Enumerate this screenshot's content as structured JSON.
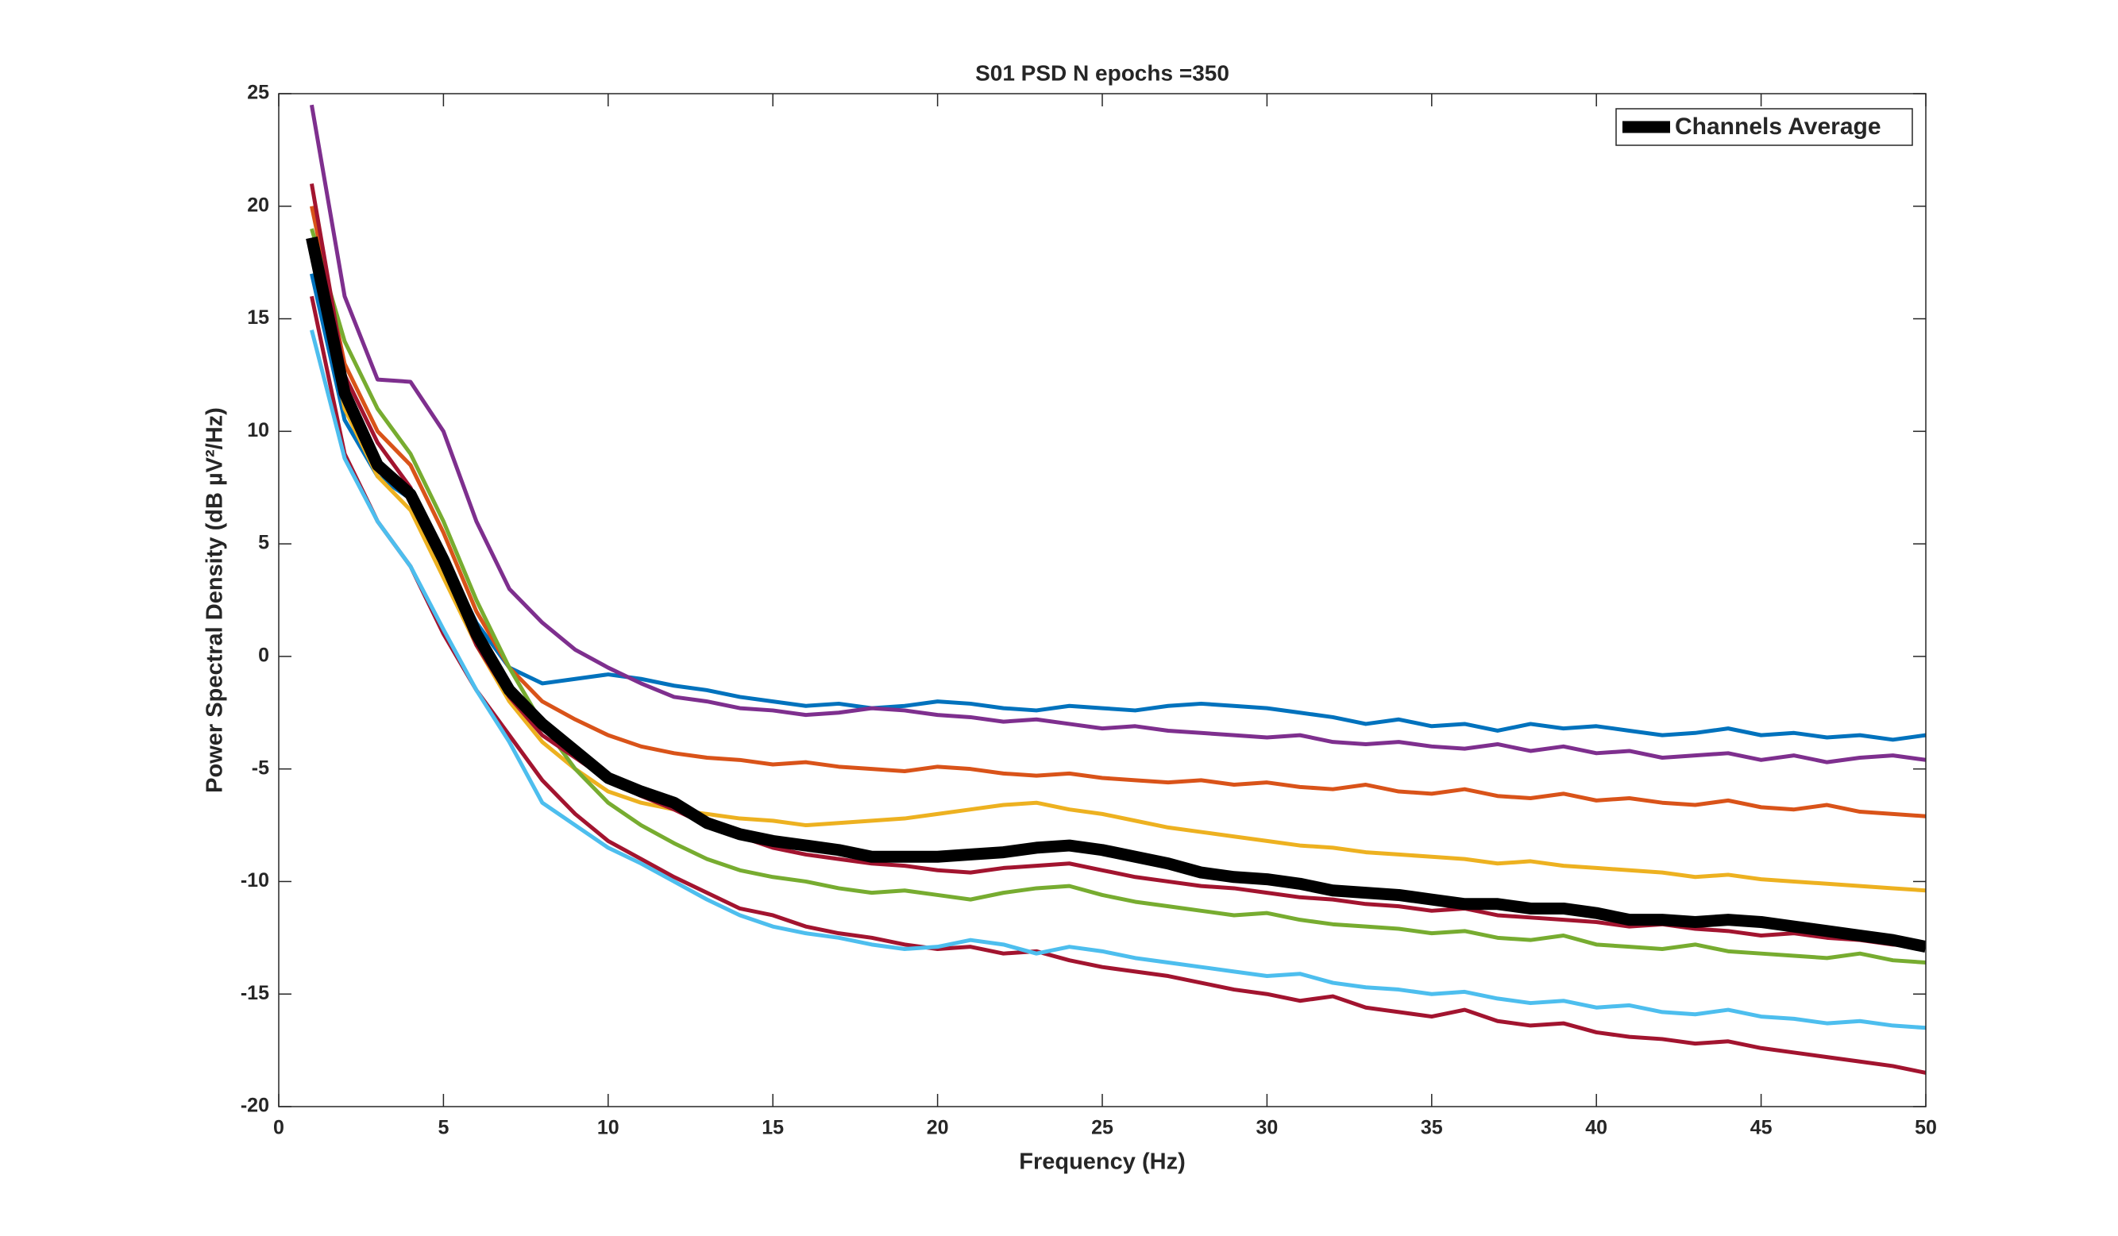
{
  "chart_data": {
    "type": "line",
    "title": "S01 PSD N epochs =350",
    "xlabel": "Frequency (Hz)",
    "ylabel": "Power Spectral Density (dB µV²/Hz)",
    "x": [
      1,
      2,
      3,
      4,
      5,
      6,
      7,
      8,
      9,
      10,
      11,
      12,
      13,
      14,
      15,
      16,
      17,
      18,
      19,
      20,
      21,
      22,
      23,
      24,
      25,
      26,
      27,
      28,
      29,
      30,
      31,
      32,
      33,
      34,
      35,
      36,
      37,
      38,
      39,
      40,
      41,
      42,
      43,
      44,
      45,
      46,
      47,
      48,
      49,
      50
    ],
    "xlim": [
      0,
      50
    ],
    "xticks": [
      0,
      5,
      10,
      15,
      20,
      25,
      30,
      35,
      40,
      45,
      50
    ],
    "ylim": [
      -20,
      25
    ],
    "yticks": [
      -20,
      -15,
      -10,
      -5,
      0,
      5,
      10,
      15,
      20,
      25
    ],
    "legend": "northeast",
    "series": [
      {
        "color": "#0072BD",
        "values": [
          17,
          10.5,
          8,
          7,
          4.5,
          1.5,
          -0.5,
          -1.2,
          -1.0,
          -0.8,
          -1.0,
          -1.3,
          -1.5,
          -1.8,
          -2.0,
          -2.2,
          -2.1,
          -2.3,
          -2.2,
          -2.0,
          -2.1,
          -2.3,
          -2.4,
          -2.2,
          -2.3,
          -2.4,
          -2.2,
          -2.1,
          -2.2,
          -2.3,
          -2.5,
          -2.7,
          -3.0,
          -2.8,
          -3.1,
          -3.0,
          -3.3,
          -3.0,
          -3.2,
          -3.1,
          -3.3,
          -3.5,
          -3.4,
          -3.2,
          -3.5,
          -3.4,
          -3.6,
          -3.5,
          -3.7,
          -3.5
        ]
      },
      {
        "color": "#7E2F8E",
        "values": [
          24.5,
          16,
          12.3,
          12.2,
          10,
          6,
          3,
          1.5,
          0.3,
          -0.5,
          -1.2,
          -1.8,
          -2.0,
          -2.3,
          -2.4,
          -2.6,
          -2.5,
          -2.3,
          -2.4,
          -2.6,
          -2.7,
          -2.9,
          -2.8,
          -3.0,
          -3.2,
          -3.1,
          -3.3,
          -3.4,
          -3.5,
          -3.6,
          -3.5,
          -3.8,
          -3.9,
          -3.8,
          -4.0,
          -4.1,
          -3.9,
          -4.2,
          -4.0,
          -4.3,
          -4.2,
          -4.5,
          -4.4,
          -4.3,
          -4.6,
          -4.4,
          -4.7,
          -4.5,
          -4.4,
          -4.6
        ]
      },
      {
        "color": "#A2142F",
        "values": [
          16,
          9,
          6,
          4,
          1,
          -1.5,
          -3.5,
          -5.5,
          -7,
          -8.2,
          -9,
          -9.8,
          -10.5,
          -11.2,
          -11.5,
          -12,
          -12.3,
          -12.5,
          -12.8,
          -13,
          -12.9,
          -13.2,
          -13.1,
          -13.5,
          -13.8,
          -14,
          -14.2,
          -14.5,
          -14.8,
          -15,
          -15.3,
          -15.1,
          -15.6,
          -15.8,
          -16.0,
          -15.7,
          -16.2,
          -16.4,
          -16.3,
          -16.7,
          -16.9,
          -17.0,
          -17.2,
          -17.1,
          -17.4,
          -17.6,
          -17.8,
          -18.0,
          -18.2,
          -18.5
        ]
      },
      {
        "color": "#4DBEEE",
        "values": [
          14.5,
          8.8,
          6,
          4,
          1.2,
          -1.5,
          -3.8,
          -6.5,
          -7.5,
          -8.5,
          -9.2,
          -10,
          -10.8,
          -11.5,
          -12,
          -12.3,
          -12.5,
          -12.8,
          -13,
          -12.9,
          -12.6,
          -12.8,
          -13.2,
          -12.9,
          -13.1,
          -13.4,
          -13.6,
          -13.8,
          -14,
          -14.2,
          -14.1,
          -14.5,
          -14.7,
          -14.8,
          -15.0,
          -14.9,
          -15.2,
          -15.4,
          -15.3,
          -15.6,
          -15.5,
          -15.8,
          -15.9,
          -15.7,
          -16.0,
          -16.1,
          -16.3,
          -16.2,
          -16.4,
          -16.5
        ]
      },
      {
        "color": "#D95319",
        "values": [
          20,
          13,
          10,
          8.5,
          5.5,
          2,
          -0.5,
          -2.0,
          -2.8,
          -3.5,
          -4.0,
          -4.3,
          -4.5,
          -4.6,
          -4.8,
          -4.7,
          -4.9,
          -5.0,
          -5.1,
          -4.9,
          -5.0,
          -5.2,
          -5.3,
          -5.2,
          -5.4,
          -5.5,
          -5.6,
          -5.5,
          -5.7,
          -5.6,
          -5.8,
          -5.9,
          -5.7,
          -6.0,
          -6.1,
          -5.9,
          -6.2,
          -6.3,
          -6.1,
          -6.4,
          -6.3,
          -6.5,
          -6.6,
          -6.4,
          -6.7,
          -6.8,
          -6.6,
          -6.9,
          -7.0,
          -7.1
        ]
      },
      {
        "color": "#EDB120",
        "values": [
          18,
          11,
          8,
          6.5,
          3.5,
          0.5,
          -2,
          -3.8,
          -5,
          -6,
          -6.5,
          -6.8,
          -7.0,
          -7.2,
          -7.3,
          -7.5,
          -7.4,
          -7.3,
          -7.2,
          -7.0,
          -6.8,
          -6.6,
          -6.5,
          -6.8,
          -7.0,
          -7.3,
          -7.6,
          -7.8,
          -8.0,
          -8.2,
          -8.4,
          -8.5,
          -8.7,
          -8.8,
          -8.9,
          -9.0,
          -9.2,
          -9.1,
          -9.3,
          -9.4,
          -9.5,
          -9.6,
          -9.8,
          -9.7,
          -9.9,
          -10.0,
          -10.1,
          -10.2,
          -10.3,
          -10.4
        ]
      },
      {
        "color": "#77AC30",
        "values": [
          19,
          14,
          11,
          9,
          6,
          2.5,
          -0.5,
          -3,
          -5,
          -6.5,
          -7.5,
          -8.3,
          -9,
          -9.5,
          -9.8,
          -10,
          -10.3,
          -10.5,
          -10.4,
          -10.6,
          -10.8,
          -10.5,
          -10.3,
          -10.2,
          -10.6,
          -10.9,
          -11.1,
          -11.3,
          -11.5,
          -11.4,
          -11.7,
          -11.9,
          -12.0,
          -12.1,
          -12.3,
          -12.2,
          -12.5,
          -12.6,
          -12.4,
          -12.8,
          -12.9,
          -13.0,
          -12.8,
          -13.1,
          -13.2,
          -13.3,
          -13.4,
          -13.2,
          -13.5,
          -13.6
        ]
      },
      {
        "color": "#A2142F",
        "values": [
          21,
          12.5,
          9.5,
          7.5,
          4,
          0.5,
          -1.8,
          -3.5,
          -4.5,
          -5.5,
          -6.2,
          -6.8,
          -7.5,
          -8,
          -8.5,
          -8.8,
          -9,
          -9.2,
          -9.3,
          -9.5,
          -9.6,
          -9.4,
          -9.3,
          -9.2,
          -9.5,
          -9.8,
          -10,
          -10.2,
          -10.3,
          -10.5,
          -10.7,
          -10.8,
          -11.0,
          -11.1,
          -11.3,
          -11.2,
          -11.5,
          -11.6,
          -11.7,
          -11.8,
          -12.0,
          -11.9,
          -12.1,
          -12.2,
          -12.4,
          -12.3,
          -12.5,
          -12.6,
          -12.8,
          -12.9
        ]
      },
      {
        "name": "Channels Average",
        "color": "#000000",
        "values": [
          18.6,
          11.7,
          8.5,
          7.2,
          4.3,
          1.0,
          -1.5,
          -3.0,
          -4.2,
          -5.4,
          -6.0,
          -6.5,
          -7.4,
          -7.9,
          -8.2,
          -8.4,
          -8.6,
          -8.9,
          -8.9,
          -8.9,
          -8.8,
          -8.7,
          -8.5,
          -8.4,
          -8.6,
          -8.9,
          -9.2,
          -9.6,
          -9.8,
          -9.9,
          -10.1,
          -10.4,
          -10.5,
          -10.6,
          -10.8,
          -11.0,
          -11.0,
          -11.2,
          -11.2,
          -11.4,
          -11.7,
          -11.7,
          -11.8,
          -11.7,
          -11.8,
          -12.0,
          -12.2,
          -12.4,
          -12.6,
          -12.9
        ]
      }
    ]
  }
}
